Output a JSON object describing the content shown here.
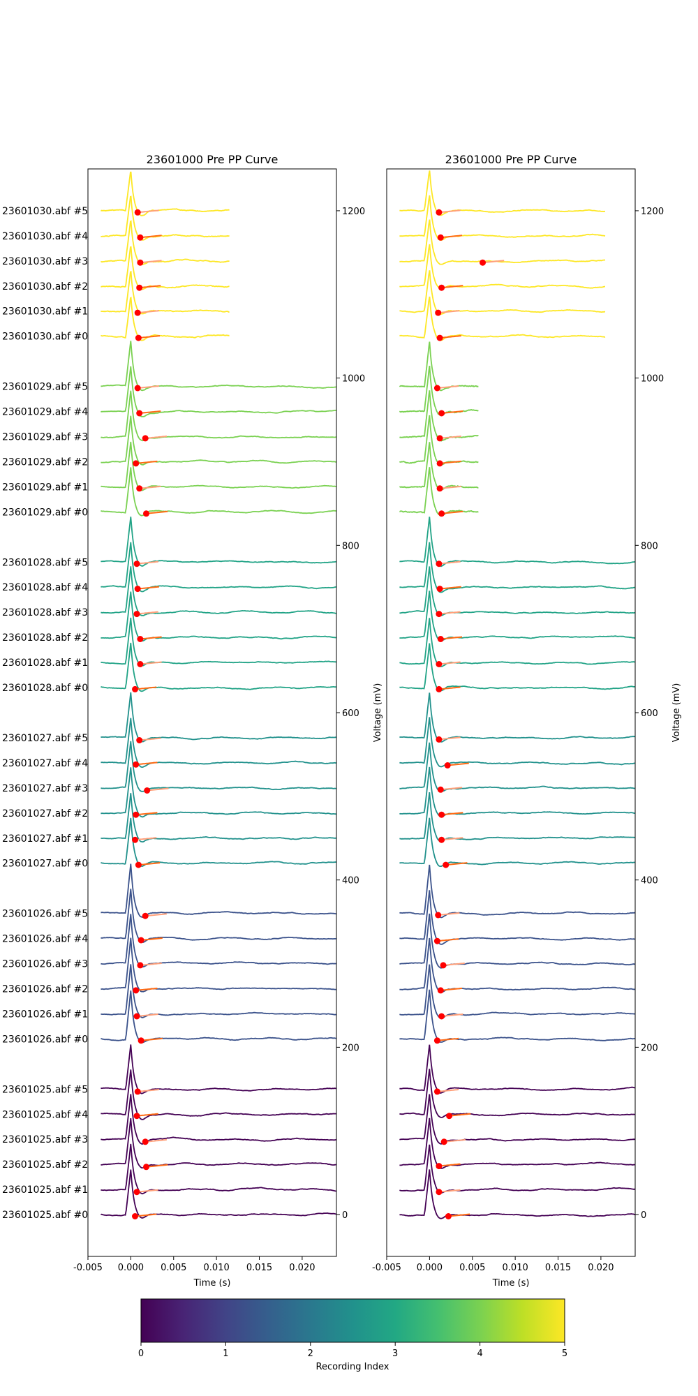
{
  "chart_data": [
    {
      "type": "line",
      "title": "23601000 Pre PP Curve",
      "xlabel": "Time (s)",
      "ylabel": "Voltage (mV)",
      "xlim": [
        -0.005,
        0.024
      ],
      "ylim": [
        -50,
        1250
      ],
      "xticks": [
        "-0.005",
        "0.000",
        "0.005",
        "0.010",
        "0.015",
        "0.020"
      ],
      "yticks": [
        "0",
        "200",
        "400",
        "600",
        "800",
        "1000",
        "1200"
      ],
      "grid": false,
      "trace_labels": [
        "23601025.abf #0",
        "23601025.abf #1",
        "23601025.abf #2",
        "23601025.abf #3",
        "23601025.abf #4",
        "23601025.abf #5",
        "23601026.abf #0",
        "23601026.abf #1",
        "23601026.abf #2",
        "23601026.abf #3",
        "23601026.abf #4",
        "23601026.abf #5",
        "23601027.abf #0",
        "23601027.abf #1",
        "23601027.abf #2",
        "23601027.abf #3",
        "23601027.abf #4",
        "23601027.abf #5",
        "23601028.abf #0",
        "23601028.abf #1",
        "23601028.abf #2",
        "23601028.abf #3",
        "23601028.abf #4",
        "23601028.abf #5",
        "23601029.abf #0",
        "23601029.abf #1",
        "23601029.abf #2",
        "23601029.abf #3",
        "23601029.abf #4",
        "23601029.abf #5",
        "23601030.abf #0",
        "23601030.abf #1",
        "23601030.abf #2",
        "23601030.abf #3",
        "23601030.abf #4",
        "23601030.abf #5"
      ],
      "trace_baselines_mV": [
        0,
        30,
        60,
        90,
        120,
        150,
        210,
        240,
        270,
        300,
        330,
        360,
        420,
        450,
        480,
        510,
        540,
        570,
        630,
        660,
        690,
        720,
        750,
        780,
        840,
        870,
        900,
        930,
        960,
        990,
        1050,
        1080,
        1110,
        1140,
        1170,
        1200
      ],
      "recording_index": [
        0,
        0,
        0,
        0,
        0,
        0,
        1,
        1,
        1,
        1,
        1,
        1,
        2,
        2,
        2,
        2,
        2,
        2,
        3,
        3,
        3,
        3,
        3,
        3,
        4,
        4,
        4,
        4,
        4,
        4,
        5,
        5,
        5,
        5,
        5,
        5
      ],
      "trace_end_time_s": [
        0.024,
        0.024,
        0.024,
        0.024,
        0.024,
        0.024,
        0.024,
        0.024,
        0.024,
        0.024,
        0.024,
        0.024,
        0.024,
        0.024,
        0.024,
        0.024,
        0.024,
        0.024,
        0.024,
        0.024,
        0.024,
        0.024,
        0.024,
        0.024,
        0.024,
        0.024,
        0.024,
        0.024,
        0.024,
        0.024,
        0.0115,
        0.0115,
        0.0115,
        0.0115,
        0.0115,
        0.0115
      ],
      "peak_height_mV": [
        55,
        55,
        55,
        55,
        55,
        55,
        60,
        60,
        60,
        60,
        60,
        60,
        55,
        55,
        55,
        55,
        55,
        55,
        55,
        55,
        55,
        55,
        55,
        55,
        55,
        55,
        55,
        55,
        55,
        55,
        50,
        50,
        50,
        50,
        50,
        50
      ],
      "marker_time_s": [
        0.0005,
        0.0007,
        0.0018,
        0.0017,
        0.0007,
        0.0008,
        0.0012,
        0.0007,
        0.0006,
        0.0011,
        0.0012,
        0.0017,
        0.0009,
        0.0005,
        0.0006,
        0.0019,
        0.0006,
        0.001,
        0.0005,
        0.0011,
        0.0011,
        0.0007,
        0.0008,
        0.0007,
        0.0018,
        0.001,
        0.0006,
        0.0017,
        0.001,
        0.0008,
        0.0009,
        0.0008,
        0.001,
        0.0011,
        0.0011,
        0.0008
      ],
      "marker_offset_mV": [
        -2,
        -3,
        -3,
        -3,
        -2,
        -3,
        -2,
        -3,
        -2,
        -2,
        -2,
        -3,
        -2,
        -2,
        -2,
        -3,
        -2,
        -3,
        -2,
        -2,
        -2,
        -2,
        -2,
        -2,
        -2,
        -2,
        -2,
        -2,
        -2,
        -2,
        -2,
        -2,
        -2,
        -2,
        -2,
        -2
      ]
    },
    {
      "type": "line",
      "title": "23601000 Pre PP Curve",
      "xlabel": "Time (s)",
      "ylabel": "Voltage (mV)",
      "xlim": [
        -0.005,
        0.024
      ],
      "ylim": [
        -50,
        1250
      ],
      "xticks": [
        "-0.005",
        "0.000",
        "0.005",
        "0.010",
        "0.015",
        "0.020"
      ],
      "yticks": [
        "0",
        "200",
        "400",
        "600",
        "800",
        "1000",
        "1200"
      ],
      "grid": false,
      "trace_baselines_mV": [
        0,
        30,
        60,
        90,
        120,
        150,
        210,
        240,
        270,
        300,
        330,
        360,
        420,
        450,
        480,
        510,
        540,
        570,
        630,
        660,
        690,
        720,
        750,
        780,
        840,
        870,
        900,
        930,
        960,
        990,
        1050,
        1080,
        1110,
        1140,
        1170,
        1200
      ],
      "recording_index": [
        0,
        0,
        0,
        0,
        0,
        0,
        1,
        1,
        1,
        1,
        1,
        1,
        2,
        2,
        2,
        2,
        2,
        2,
        3,
        3,
        3,
        3,
        3,
        3,
        4,
        4,
        4,
        4,
        4,
        4,
        5,
        5,
        5,
        5,
        5,
        5
      ],
      "trace_end_time_s": [
        0.024,
        0.024,
        0.024,
        0.024,
        0.024,
        0.024,
        0.024,
        0.024,
        0.024,
        0.024,
        0.024,
        0.024,
        0.024,
        0.024,
        0.024,
        0.024,
        0.024,
        0.024,
        0.024,
        0.024,
        0.024,
        0.024,
        0.024,
        0.024,
        0.0057,
        0.0057,
        0.0057,
        0.0057,
        0.0057,
        0.0057,
        0.0205,
        0.0205,
        0.0205,
        0.0205,
        0.0205,
        0.0205
      ],
      "peak_height_mV": [
        55,
        55,
        55,
        55,
        55,
        55,
        60,
        60,
        60,
        60,
        60,
        60,
        55,
        55,
        55,
        55,
        55,
        55,
        55,
        55,
        55,
        55,
        55,
        55,
        55,
        55,
        55,
        55,
        55,
        55,
        50,
        50,
        50,
        50,
        50,
        50
      ],
      "marker_time_s": [
        0.0022,
        0.0011,
        0.0011,
        0.0017,
        0.0023,
        0.0009,
        0.0009,
        0.0014,
        0.0013,
        0.0016,
        0.0009,
        0.001,
        0.0019,
        0.0014,
        0.0014,
        0.0013,
        0.0021,
        0.0011,
        0.0011,
        0.0011,
        0.0013,
        0.0011,
        0.0012,
        0.0011,
        0.0014,
        0.0012,
        0.0012,
        0.0012,
        0.0014,
        0.0009,
        0.0012,
        0.001,
        0.0014,
        0.0062,
        0.0013,
        0.0011
      ],
      "marker_offset_mV": [
        -2,
        -3,
        -2,
        -3,
        -2,
        -3,
        -2,
        -3,
        -2,
        -2,
        -3,
        -2,
        -2,
        -2,
        -2,
        -2,
        -3,
        -2,
        -2,
        -2,
        -2,
        -2,
        -2,
        -2,
        -2,
        -2,
        -2,
        -2,
        -2,
        -2,
        -2,
        -2,
        -2,
        -2,
        -2,
        -2
      ]
    }
  ],
  "colorbar": {
    "label": "Recording Index",
    "range": [
      0,
      5
    ],
    "ticks": [
      "0",
      "1",
      "2",
      "3",
      "4",
      "5"
    ],
    "colormap": "viridis"
  },
  "colors": {
    "marker": "#ff0000",
    "fit_line": "#ff6a13"
  }
}
